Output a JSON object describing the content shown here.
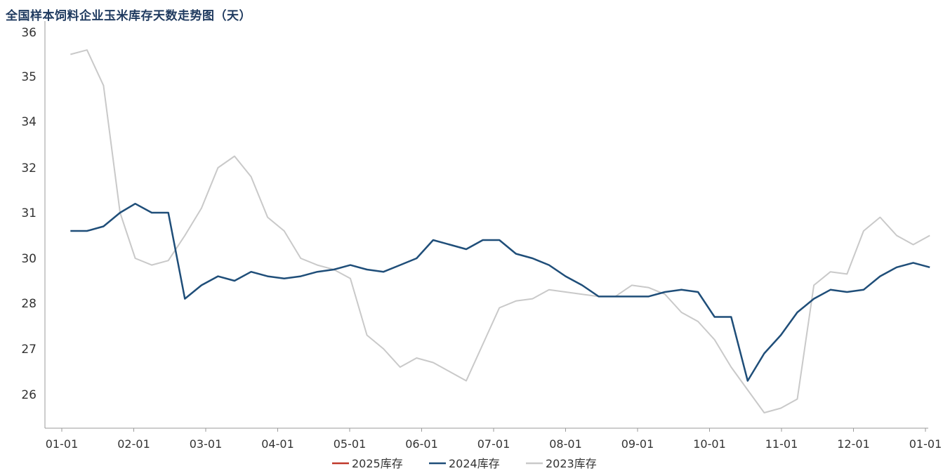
{
  "chart_data": {
    "type": "line",
    "title": "全国样本饲料企业玉米库存天数走势图（天）",
    "x_ticks": [
      "01-01",
      "02-01",
      "03-01",
      "04-01",
      "05-01",
      "06-01",
      "07-01",
      "08-01",
      "09-01",
      "10-01",
      "11-01",
      "12-01",
      "01-01"
    ],
    "y_ticks": [
      "36",
      "35",
      "34",
      "32",
      "31",
      "30",
      "28",
      "27",
      "26"
    ],
    "series": [
      {
        "name": "2025库存",
        "color": "#c0392b",
        "points": []
      },
      {
        "name": "2024库存",
        "color": "#1f4e79",
        "points": [
          [
            0.12,
            30.6
          ],
          [
            0.35,
            30.6
          ],
          [
            0.58,
            30.7
          ],
          [
            0.81,
            31.0
          ],
          [
            1.02,
            31.2
          ],
          [
            1.25,
            31.0
          ],
          [
            1.48,
            31.0
          ],
          [
            1.71,
            28.2
          ],
          [
            1.94,
            28.8
          ],
          [
            2.17,
            29.2
          ],
          [
            2.4,
            29.0
          ],
          [
            2.63,
            29.4
          ],
          [
            2.86,
            29.2
          ],
          [
            3.09,
            29.1
          ],
          [
            3.32,
            29.2
          ],
          [
            3.55,
            29.4
          ],
          [
            3.78,
            29.5
          ],
          [
            4.01,
            29.7
          ],
          [
            4.24,
            29.5
          ],
          [
            4.47,
            29.4
          ],
          [
            4.7,
            29.7
          ],
          [
            4.93,
            30.0
          ],
          [
            5.16,
            30.4
          ],
          [
            5.39,
            30.3
          ],
          [
            5.62,
            30.2
          ],
          [
            5.85,
            30.4
          ],
          [
            6.08,
            30.4
          ],
          [
            6.31,
            30.1
          ],
          [
            6.54,
            30.0
          ],
          [
            6.77,
            29.7
          ],
          [
            7.0,
            29.2
          ],
          [
            7.23,
            28.8
          ],
          [
            7.46,
            28.3
          ],
          [
            7.69,
            28.3
          ],
          [
            7.92,
            28.3
          ],
          [
            8.15,
            28.3
          ],
          [
            8.38,
            28.5
          ],
          [
            8.61,
            28.6
          ],
          [
            8.84,
            28.5
          ],
          [
            9.07,
            27.7
          ],
          [
            9.3,
            27.7
          ],
          [
            9.53,
            26.3
          ],
          [
            9.76,
            26.9
          ],
          [
            9.99,
            27.3
          ],
          [
            10.22,
            27.8
          ],
          [
            10.45,
            28.2
          ],
          [
            10.68,
            28.6
          ],
          [
            10.91,
            28.5
          ],
          [
            11.14,
            28.6
          ],
          [
            11.37,
            29.2
          ],
          [
            11.6,
            29.6
          ],
          [
            11.83,
            29.8
          ],
          [
            12.06,
            29.6
          ]
        ]
      },
      {
        "name": "2023库存",
        "color": "#c9c9c9",
        "points": [
          [
            0.12,
            35.5
          ],
          [
            0.35,
            35.6
          ],
          [
            0.58,
            34.8
          ],
          [
            0.81,
            31.0
          ],
          [
            1.02,
            30.0
          ],
          [
            1.25,
            29.7
          ],
          [
            1.48,
            29.9
          ],
          [
            1.71,
            30.5
          ],
          [
            1.94,
            31.1
          ],
          [
            2.17,
            32.0
          ],
          [
            2.4,
            32.5
          ],
          [
            2.63,
            31.8
          ],
          [
            2.86,
            30.9
          ],
          [
            3.09,
            30.6
          ],
          [
            3.32,
            30.0
          ],
          [
            3.55,
            29.7
          ],
          [
            3.78,
            29.5
          ],
          [
            4.01,
            29.1
          ],
          [
            4.24,
            27.3
          ],
          [
            4.47,
            27.0
          ],
          [
            4.7,
            26.6
          ],
          [
            4.93,
            26.8
          ],
          [
            5.16,
            26.7
          ],
          [
            5.39,
            26.5
          ],
          [
            5.62,
            26.3
          ],
          [
            5.85,
            27.1
          ],
          [
            6.08,
            27.9
          ],
          [
            6.31,
            28.1
          ],
          [
            6.54,
            28.2
          ],
          [
            6.77,
            28.6
          ],
          [
            7.0,
            28.5
          ],
          [
            7.23,
            28.4
          ],
          [
            7.46,
            28.3
          ],
          [
            7.69,
            28.3
          ],
          [
            7.92,
            28.8
          ],
          [
            8.15,
            28.7
          ],
          [
            8.38,
            28.4
          ],
          [
            8.61,
            27.8
          ],
          [
            8.84,
            27.6
          ],
          [
            9.07,
            27.2
          ],
          [
            9.3,
            26.6
          ],
          [
            9.53,
            26.1
          ],
          [
            9.76,
            25.6
          ],
          [
            9.99,
            25.7
          ],
          [
            10.22,
            25.9
          ],
          [
            10.45,
            28.8
          ],
          [
            10.68,
            29.4
          ],
          [
            10.91,
            29.3
          ],
          [
            11.14,
            30.6
          ],
          [
            11.37,
            30.9
          ],
          [
            11.6,
            30.5
          ],
          [
            11.83,
            30.3
          ],
          [
            12.06,
            30.5
          ]
        ]
      }
    ]
  }
}
